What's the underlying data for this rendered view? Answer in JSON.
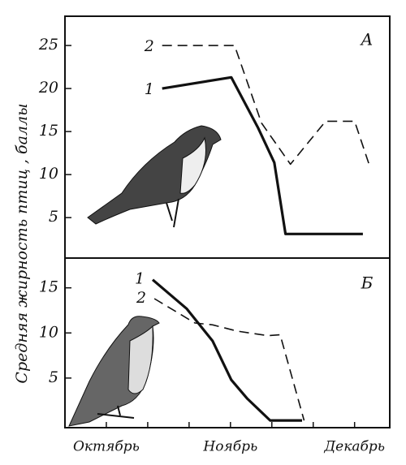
{
  "chart_data": [
    {
      "type": "line",
      "ylabel": "Средняя жирность птиц , баллы",
      "panel_label": "А",
      "ylim": [
        0.3,
        28.4
      ],
      "yticks": [
        5,
        10,
        15,
        20,
        25
      ],
      "xlim": [
        0,
        7.85
      ],
      "series": [
        {
          "name": "2",
          "color": "#111",
          "dashed": true,
          "x": [
            2.35,
            4.1,
            4.75,
            5.45,
            6.3,
            7.0,
            7.35
          ],
          "values": [
            25,
            25,
            16,
            11.2,
            16.2,
            16.2,
            11.2
          ]
        },
        {
          "name": "1",
          "color": "#111",
          "dashed": false,
          "x": [
            2.35,
            4.02,
            4.67,
            5.06,
            5.33,
            7.2
          ],
          "values": [
            20,
            21.3,
            15.4,
            11.4,
            3.1,
            3.1
          ]
        }
      ]
    },
    {
      "type": "line",
      "panel_label": "Б",
      "ylim": [
        -0.5,
        18.3
      ],
      "yticks": [
        5,
        10,
        15
      ],
      "xlim": [
        0,
        7.85
      ],
      "xticks": [
        {
          "value": 1,
          "label": "Октябрь"
        },
        {
          "value": 4,
          "label": "Ноябрь"
        },
        {
          "value": 7,
          "label": "Декабрь"
        }
      ],
      "xminorticks": [
        1,
        2,
        3,
        4,
        5,
        6,
        7
      ],
      "series": [
        {
          "name": "1",
          "color": "#111",
          "dashed": false,
          "x": [
            2.12,
            2.94,
            3.57,
            4.02,
            4.41,
            4.96,
            5.73
          ],
          "values": [
            15.9,
            12.7,
            9.1,
            4.8,
            2.7,
            0.3,
            0.3
          ]
        },
        {
          "name": "2",
          "color": "#111",
          "dashed": true,
          "x": [
            2.16,
            3.14,
            3.57,
            4.16,
            4.9,
            5.2,
            5.78
          ],
          "values": [
            13.8,
            11.1,
            10.9,
            10.2,
            9.7,
            9.8,
            0.3
          ]
        }
      ]
    }
  ]
}
